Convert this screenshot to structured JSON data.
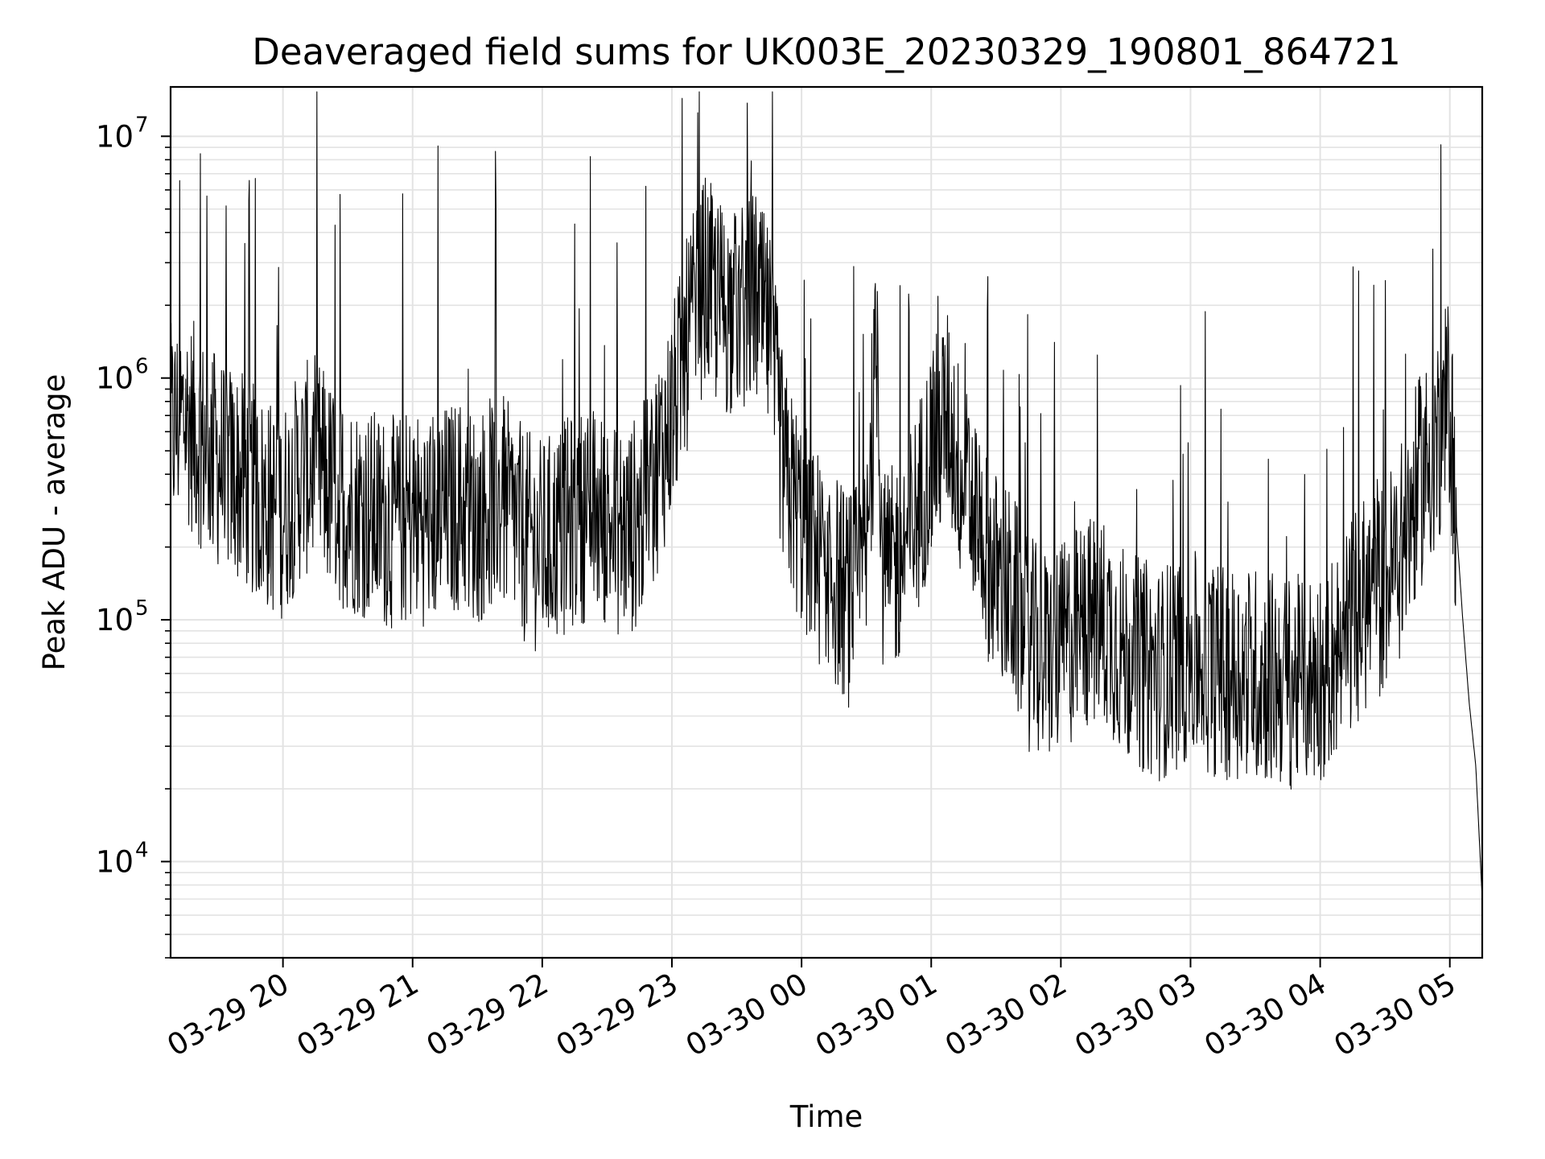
{
  "chart_data": {
    "type": "line",
    "title": "Deaveraged field sums for UK003E_20230329_190801_864721",
    "xlabel": "Time",
    "ylabel": "Peak ADU - average",
    "yscale": "log",
    "ylim": [
      4000,
      16000000
    ],
    "xlim": [
      "03-29 19:08",
      "03-30 05:15"
    ],
    "grid": true,
    "xticks": [
      "03-29 20",
      "03-29 21",
      "03-29 22",
      "03-29 23",
      "03-30 00",
      "03-30 01",
      "03-30 02",
      "03-30 03",
      "03-30 04",
      "03-30 05"
    ],
    "yticks": [
      {
        "base": "10",
        "exp": "4",
        "value": 10000
      },
      {
        "base": "10",
        "exp": "5",
        "value": 100000
      },
      {
        "base": "10",
        "exp": "6",
        "value": 1000000
      },
      {
        "base": "10",
        "exp": "7",
        "value": 10000000
      }
    ],
    "line_color": "#000000",
    "series": [
      {
        "note_unused": null,
        "x": [
          "03-29 19:08",
          "03-29 19:15",
          "03-29 19:22",
          "03-29 19:30",
          "03-29 19:38",
          "03-29 19:45",
          "03-29 19:52",
          "03-29 20:00",
          "03-29 20:08",
          "03-29 20:15",
          "03-29 20:22",
          "03-29 20:30",
          "03-29 20:38",
          "03-29 20:45",
          "03-29 20:52",
          "03-29 21:00",
          "03-29 21:08",
          "03-29 21:15",
          "03-29 21:22",
          "03-29 21:30",
          "03-29 21:38",
          "03-29 21:45",
          "03-29 21:52",
          "03-29 22:00",
          "03-29 22:08",
          "03-29 22:15",
          "03-29 22:22",
          "03-29 22:30",
          "03-29 22:38",
          "03-29 22:45",
          "03-29 22:52",
          "03-29 23:00",
          "03-29 23:08",
          "03-29 23:15",
          "03-29 23:22",
          "03-29 23:30",
          "03-29 23:38",
          "03-29 23:45",
          "03-29 23:52",
          "03-30 00:00",
          "03-30 00:08",
          "03-30 00:15",
          "03-30 00:22",
          "03-30 00:30",
          "03-30 00:35",
          "03-30 00:38",
          "03-30 00:45",
          "03-30 00:52",
          "03-30 01:00",
          "03-30 01:08",
          "03-30 01:15",
          "03-30 01:22",
          "03-30 01:30",
          "03-30 01:38",
          "03-30 01:45",
          "03-30 01:52",
          "03-30 02:00",
          "03-30 02:08",
          "03-30 02:15",
          "03-30 02:22",
          "03-30 02:30",
          "03-30 02:38",
          "03-30 02:45",
          "03-30 02:52",
          "03-30 03:00",
          "03-30 03:08",
          "03-30 03:15",
          "03-30 03:22",
          "03-30 03:30",
          "03-30 03:38",
          "03-30 03:45",
          "03-30 03:52",
          "03-30 04:00",
          "03-30 04:08",
          "03-30 04:15",
          "03-30 04:22",
          "03-30 04:30",
          "03-30 04:38",
          "03-30 04:45",
          "03-30 04:52",
          "03-30 04:57",
          "03-30 05:00",
          "03-30 05:03",
          "03-30 05:06",
          "03-30 05:09",
          "03-30 05:12",
          "03-30 05:15"
        ],
        "values": [
          600000,
          700000,
          550000,
          450000,
          400000,
          350000,
          300000,
          280000,
          400000,
          450000,
          350000,
          300000,
          280000,
          260000,
          250000,
          270000,
          260000,
          280000,
          300000,
          260000,
          320000,
          280000,
          220000,
          200000,
          230000,
          260000,
          280000,
          250000,
          230000,
          260000,
          400000,
          700000,
          1500000,
          2500000,
          2000000,
          1800000,
          2200000,
          1500000,
          400000,
          250000,
          180000,
          150000,
          120000,
          160000,
          1500000,
          130000,
          180000,
          250000,
          500000,
          700000,
          350000,
          250000,
          150000,
          120000,
          80000,
          70000,
          75000,
          90000,
          100000,
          95000,
          70000,
          65000,
          60000,
          65000,
          70000,
          65000,
          60000,
          62000,
          60000,
          58000,
          55000,
          55000,
          60000,
          75000,
          100000,
          120000,
          140000,
          200000,
          350000,
          500000,
          650000,
          800000,
          250000,
          100000,
          45000,
          25000,
          7000
        ]
      }
    ]
  }
}
